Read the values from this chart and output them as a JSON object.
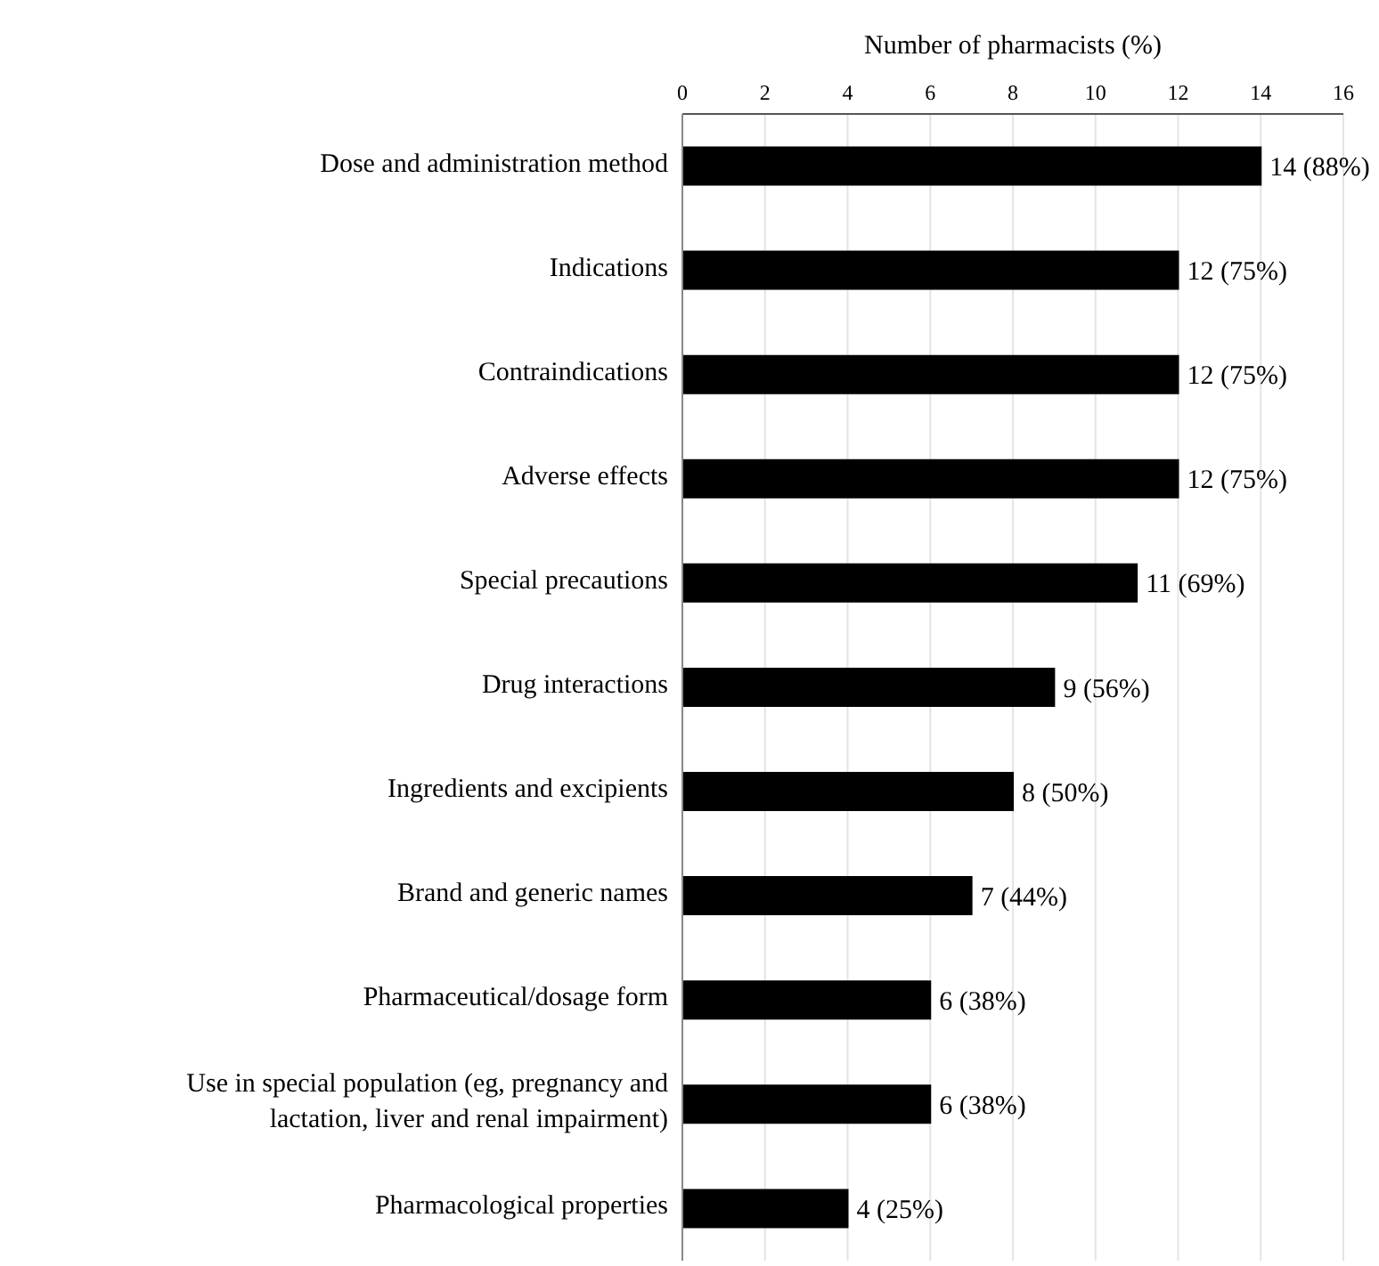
{
  "chart_data": {
    "type": "bar",
    "orientation": "horizontal",
    "xlabel": "Number of pharmacists (%)",
    "categories": [
      "Dose and administration method",
      "Indications",
      "Contraindications",
      "Adverse effects",
      "Special precautions",
      "Drug interactions",
      "Ingredients and excipients",
      "Brand and generic names",
      "Pharmaceutical/dosage form",
      "Use in special population (eg, pregnancy and lactation, liver and renal impairment)",
      "Pharmacological properties"
    ],
    "values": [
      14,
      12,
      12,
      12,
      11,
      9,
      8,
      7,
      6,
      6,
      4
    ],
    "value_labels": [
      "14 (88%)",
      "12 (75%)",
      "12 (75%)",
      "12 (75%)",
      "11 (69%)",
      "9 (56%)",
      "8 (50%)",
      "7 (44%)",
      "6 (38%)",
      "6 (38%)",
      "4 (25%)"
    ],
    "color": "#000000",
    "xlim": [
      0,
      16
    ],
    "xticks": [
      0,
      2,
      4,
      6,
      8,
      10,
      12,
      14,
      16
    ],
    "grid": "x",
    "legend": false
  }
}
